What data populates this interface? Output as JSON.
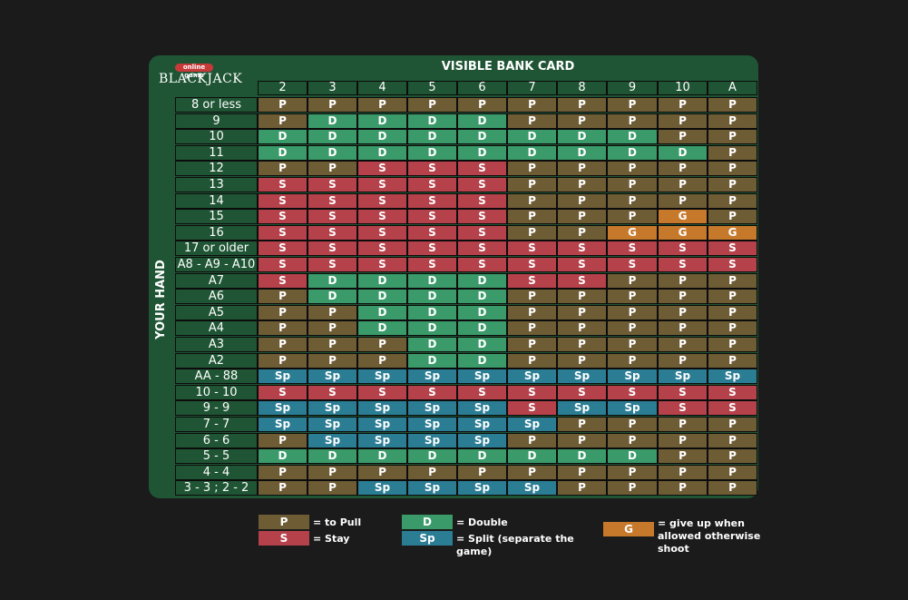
{
  "logo": {
    "badge": "online game",
    "word": "BLACKJACK"
  },
  "column_title": "VISIBLE BANK CARD",
  "row_title": "YOUR HAND",
  "columns": [
    "2",
    "3",
    "4",
    "5",
    "6",
    "7",
    "8",
    "9",
    "10",
    "A"
  ],
  "rows": [
    {
      "label": "8 or less",
      "actions": [
        "P",
        "P",
        "P",
        "P",
        "P",
        "P",
        "P",
        "P",
        "P",
        "P"
      ]
    },
    {
      "label": "9",
      "actions": [
        "P",
        "D",
        "D",
        "D",
        "D",
        "P",
        "P",
        "P",
        "P",
        "P"
      ]
    },
    {
      "label": "10",
      "actions": [
        "D",
        "D",
        "D",
        "D",
        "D",
        "D",
        "D",
        "D",
        "P",
        "P"
      ]
    },
    {
      "label": "11",
      "actions": [
        "D",
        "D",
        "D",
        "D",
        "D",
        "D",
        "D",
        "D",
        "D",
        "P"
      ]
    },
    {
      "label": "12",
      "actions": [
        "P",
        "P",
        "S",
        "S",
        "S",
        "P",
        "P",
        "P",
        "P",
        "P"
      ]
    },
    {
      "label": "13",
      "actions": [
        "S",
        "S",
        "S",
        "S",
        "S",
        "P",
        "P",
        "P",
        "P",
        "P"
      ]
    },
    {
      "label": "14",
      "actions": [
        "S",
        "S",
        "S",
        "S",
        "S",
        "P",
        "P",
        "P",
        "P",
        "P"
      ]
    },
    {
      "label": "15",
      "actions": [
        "S",
        "S",
        "S",
        "S",
        "S",
        "P",
        "P",
        "P",
        "G",
        "P"
      ]
    },
    {
      "label": "16",
      "actions": [
        "S",
        "S",
        "S",
        "S",
        "S",
        "P",
        "P",
        "G",
        "G",
        "G"
      ]
    },
    {
      "label": "17 or older",
      "actions": [
        "S",
        "S",
        "S",
        "S",
        "S",
        "S",
        "S",
        "S",
        "S",
        "S"
      ]
    },
    {
      "label": "A8 - A9 - A10",
      "actions": [
        "S",
        "S",
        "S",
        "S",
        "S",
        "S",
        "S",
        "S",
        "S",
        "S"
      ]
    },
    {
      "label": "A7",
      "actions": [
        "S",
        "D",
        "D",
        "D",
        "D",
        "S",
        "S",
        "P",
        "P",
        "P"
      ]
    },
    {
      "label": "A6",
      "actions": [
        "P",
        "D",
        "D",
        "D",
        "D",
        "P",
        "P",
        "P",
        "P",
        "P"
      ]
    },
    {
      "label": "A5",
      "actions": [
        "P",
        "P",
        "D",
        "D",
        "D",
        "P",
        "P",
        "P",
        "P",
        "P"
      ]
    },
    {
      "label": "A4",
      "actions": [
        "P",
        "P",
        "D",
        "D",
        "D",
        "P",
        "P",
        "P",
        "P",
        "P"
      ]
    },
    {
      "label": "A3",
      "actions": [
        "P",
        "P",
        "P",
        "D",
        "D",
        "P",
        "P",
        "P",
        "P",
        "P"
      ]
    },
    {
      "label": "A2",
      "actions": [
        "P",
        "P",
        "P",
        "D",
        "D",
        "P",
        "P",
        "P",
        "P",
        "P"
      ]
    },
    {
      "label": "AA - 88",
      "actions": [
        "Sp",
        "Sp",
        "Sp",
        "Sp",
        "Sp",
        "Sp",
        "Sp",
        "Sp",
        "Sp",
        "Sp"
      ]
    },
    {
      "label": "10 - 10",
      "actions": [
        "S",
        "S",
        "S",
        "S",
        "S",
        "S",
        "S",
        "S",
        "S",
        "S"
      ]
    },
    {
      "label": "9 - 9",
      "actions": [
        "Sp",
        "Sp",
        "Sp",
        "Sp",
        "Sp",
        "S",
        "Sp",
        "Sp",
        "S",
        "S"
      ]
    },
    {
      "label": "7 - 7",
      "actions": [
        "Sp",
        "Sp",
        "Sp",
        "Sp",
        "Sp",
        "Sp",
        "P",
        "P",
        "P",
        "P"
      ]
    },
    {
      "label": "6 - 6",
      "actions": [
        "P",
        "Sp",
        "Sp",
        "Sp",
        "Sp",
        "P",
        "P",
        "P",
        "P",
        "P"
      ]
    },
    {
      "label": "5 - 5",
      "actions": [
        "D",
        "D",
        "D",
        "D",
        "D",
        "D",
        "D",
        "D",
        "P",
        "P"
      ]
    },
    {
      "label": "4 - 4",
      "actions": [
        "P",
        "P",
        "P",
        "P",
        "P",
        "P",
        "P",
        "P",
        "P",
        "P"
      ]
    },
    {
      "label": "3 - 3 ; 2 - 2",
      "actions": [
        "P",
        "P",
        "Sp",
        "Sp",
        "Sp",
        "Sp",
        "P",
        "P",
        "P",
        "P"
      ]
    }
  ],
  "legend": [
    {
      "code": "P",
      "text": "= to Pull"
    },
    {
      "code": "S",
      "text": "= Stay"
    },
    {
      "code": "D",
      "text": "= Double"
    },
    {
      "code": "Sp",
      "text": "= Split (separate the game)"
    },
    {
      "code": "G",
      "text": "= give up when allowed otherwise shoot"
    }
  ],
  "colors": {
    "P": "#6e5c35",
    "S": "#b5414b",
    "D": "#3a9a69",
    "Sp": "#2b7d94",
    "G": "#c7792b",
    "panel": "#1f5534",
    "background": "#1b1b1b"
  }
}
